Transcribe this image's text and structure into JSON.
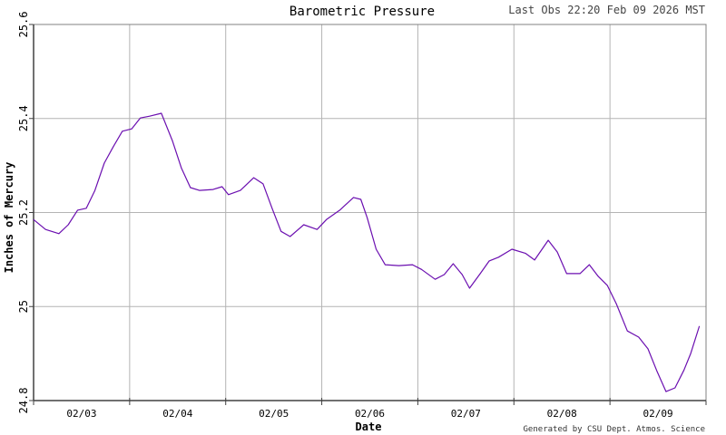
{
  "header": {
    "title": "Barometric Pressure",
    "last_obs": "Last Obs 22:20 Feb 09 2026 MST"
  },
  "footer": {
    "credit": "Generated by CSU Dept. Atmos. Science"
  },
  "chart_data": {
    "type": "line",
    "title": "Barometric Pressure",
    "xlabel": "Date",
    "ylabel": "Inches of Mercury",
    "ylim": [
      24.8,
      25.6
    ],
    "yticks": [
      "24.8",
      "25",
      "25.2",
      "25.4",
      "25.6"
    ],
    "xlim": [
      "02/03 00:00",
      "02/10 00:00"
    ],
    "xticks": [
      "02/03",
      "02/04",
      "02/05",
      "02/06",
      "02/07",
      "02/08",
      "02/09"
    ],
    "grid": true,
    "colors": {
      "line": "#6b0fb0",
      "grid": "#b4b4b4",
      "axis": "#404040"
    },
    "series": [
      {
        "x": [
          "02/03 00:00",
          "02/03 03:00",
          "02/03 06:20",
          "02/03 08:40",
          "02/03 11:00",
          "02/03 13:10",
          "02/03 15:20",
          "02/03 17:40",
          "02/03 19:55",
          "02/03 22:10",
          "02/04 00:30",
          "02/04 02:40",
          "02/04 05:00",
          "02/04 07:55",
          "02/04 10:40",
          "02/04 12:55",
          "02/04 15:10",
          "02/04 17:25",
          "02/04 20:50",
          "02/04 23:05",
          "02/05 00:40",
          "02/05 03:40",
          "02/05 07:00",
          "02/05 09:20",
          "02/05 11:35",
          "02/05 13:50",
          "02/05 16:05",
          "02/05 19:30",
          "02/05 22:50",
          "02/06 01:10",
          "02/06 04:30",
          "02/06 07:55",
          "02/06 09:45",
          "02/06 11:20",
          "02/06 13:35",
          "02/06 15:50",
          "02/06 19:15",
          "02/06 22:40",
          "02/07 00:55",
          "02/07 04:20",
          "02/07 06:35",
          "02/07 08:50",
          "02/07 11:05",
          "02/07 12:55",
          "02/07 15:35",
          "02/07 17:50",
          "02/07 20:10",
          "02/07 23:30",
          "02/08 02:55",
          "02/08 05:10",
          "02/08 08:35",
          "02/08 10:50",
          "02/08 13:10",
          "02/08 16:30",
          "02/08 18:50",
          "02/08 21:05",
          "02/08 23:20",
          "02/09 01:35",
          "02/09 04:20",
          "02/09 07:10",
          "02/09 09:30",
          "02/09 11:45",
          "02/09 14:00",
          "02/09 16:15",
          "02/09 18:30",
          "02/09 20:10",
          "02/09 22:20"
        ],
        "y": [
          25.185,
          25.164,
          25.155,
          25.174,
          25.205,
          25.209,
          25.247,
          25.305,
          25.34,
          25.373,
          25.378,
          25.401,
          25.405,
          25.411,
          25.353,
          25.295,
          25.253,
          25.247,
          25.249,
          25.255,
          25.238,
          25.247,
          25.274,
          25.261,
          25.209,
          25.16,
          25.149,
          25.174,
          25.164,
          25.185,
          25.205,
          25.232,
          25.228,
          25.189,
          25.122,
          25.089,
          25.087,
          25.089,
          25.079,
          25.058,
          25.068,
          25.091,
          25.068,
          25.039,
          25.07,
          25.097,
          25.105,
          25.122,
          25.113,
          25.099,
          25.141,
          25.116,
          25.07,
          25.07,
          25.089,
          25.064,
          25.045,
          25.006,
          24.948,
          24.935,
          24.91,
          24.862,
          24.819,
          24.827,
          24.865,
          24.9,
          24.958
        ]
      }
    ]
  }
}
